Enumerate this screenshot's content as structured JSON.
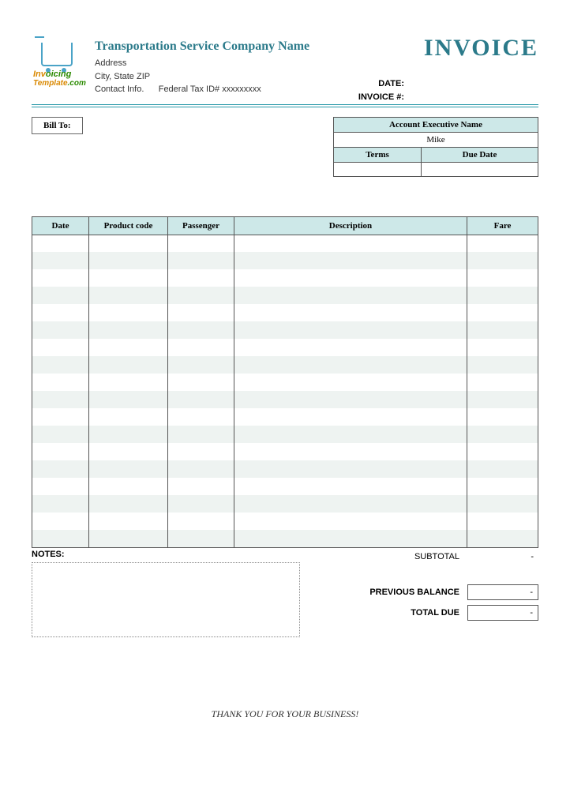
{
  "logo": {
    "line1_a": "Inv",
    "line1_b": "oic",
    "line1_c": "ing",
    "line2": "Template",
    "line2_suffix": ".com"
  },
  "header": {
    "company_name": "Transportation Service Company Name",
    "address": "Address",
    "city_state_zip": "City, State ZIP",
    "contact_info": "Contact Info.",
    "tax_id_label": "Federal Tax ID# xxxxxxxxx",
    "invoice_title": "INVOICE",
    "date_label": "DATE:",
    "invoice_num_label": "INVOICE #:"
  },
  "billto": {
    "label": "Bill To:"
  },
  "account": {
    "header": "Account Executive Name",
    "name": "Mike",
    "terms_label": "Terms",
    "due_date_label": "Due Date",
    "terms_value": "",
    "due_date_value": ""
  },
  "items": {
    "columns": {
      "date": "Date",
      "code": "Product code",
      "passenger": "Passenger",
      "description": "Description",
      "fare": "Fare"
    },
    "row_count": 18,
    "col_widths": {
      "date": 72,
      "code": 100,
      "passenger": 84,
      "fare": 90
    },
    "header_bg": "#cde8e8",
    "stripe_bg": "#eef3f1",
    "border_color": "#555555"
  },
  "notes": {
    "label": "NOTES:"
  },
  "totals": {
    "subtotal_label": "SUBTOTAL",
    "subtotal_value": "-",
    "prev_balance_label": "PREVIOUS BALANCE",
    "prev_balance_value": "-",
    "total_due_label": "TOTAL DUE",
    "total_due_value": "-"
  },
  "footer": "THANK YOU FOR YOUR BUSINESS!",
  "colors": {
    "accent": "#2b7a8a",
    "rule": "#2b9aaa",
    "header_fill": "#cde8e8"
  }
}
